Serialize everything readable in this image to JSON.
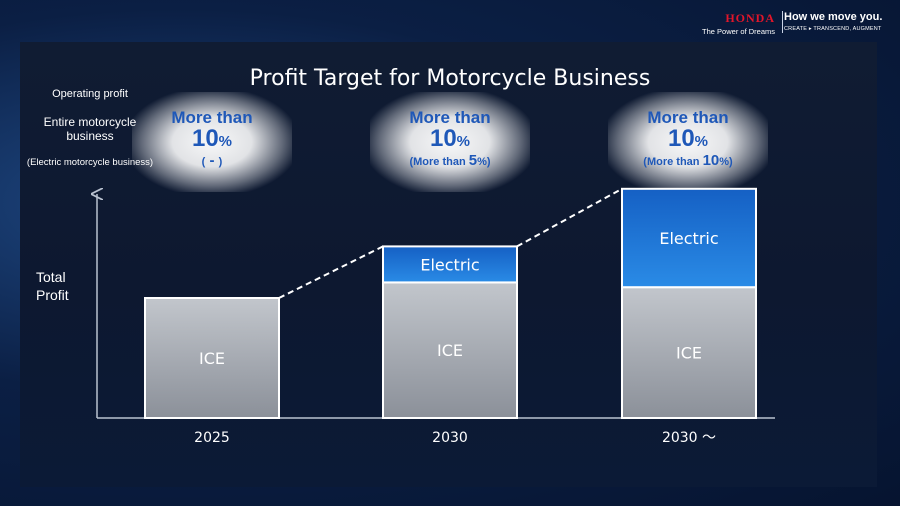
{
  "header": {
    "brand_name": "HONDA",
    "brand_tagline": "The Power of Dreams",
    "motto": "How we move you.",
    "motto_sub": "CREATE ▸ TRANSCEND, AUGMENT",
    "brand_color": "#e3162a"
  },
  "slide": {
    "title": "Profit Target for Motorcycle Business",
    "operating_profit_label": "Operating profit",
    "entire_label": "Entire motorcycle business",
    "electric_label": "(Electric motorcycle business)",
    "y_label": "Total Profit"
  },
  "targets": [
    {
      "more_than": "More than",
      "pct_num": "10",
      "pct_sign": "%",
      "sub_open": "(",
      "sub_value": " - ",
      "sub_sign": "",
      "sub_close": ")"
    },
    {
      "more_than": "More than",
      "pct_num": "10",
      "pct_sign": "%",
      "sub_open": "(More than ",
      "sub_value": "5",
      "sub_sign": "%",
      "sub_close": ")"
    },
    {
      "more_than": "More than",
      "pct_num": "10",
      "pct_sign": "%",
      "sub_open": "(More than ",
      "sub_value": "10",
      "sub_sign": "%",
      "sub_close": ")"
    }
  ],
  "chart_data": {
    "type": "bar",
    "stacked": true,
    "categories": [
      "2025",
      "2030",
      "2030 ～"
    ],
    "series": [
      {
        "name": "ICE",
        "values": [
          100,
          113,
          109
        ],
        "color": "#a9aeb6"
      },
      {
        "name": "Electric",
        "values": [
          0,
          30,
          82
        ],
        "color": "#1e7ad6"
      }
    ],
    "ylabel": "Total Profit",
    "ylim": [
      0,
      190
    ],
    "y_ticks_shown": false,
    "trend_line": "dashed",
    "grid": false
  }
}
